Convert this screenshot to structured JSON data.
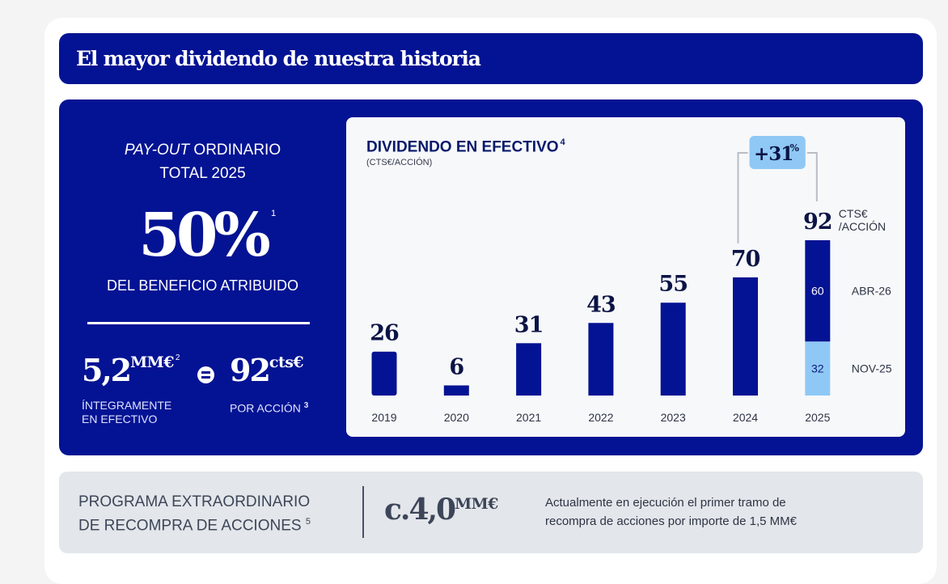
{
  "header": {
    "title": "El mayor dividendo de nuestra historia"
  },
  "payout": {
    "title_italic": "PAY-OUT",
    "title_rest": " ORDINARIO",
    "title_line2": "TOTAL 2025",
    "value": "50%",
    "footnote": "1",
    "caption": "DEL BENEFICIO ATRIBUIDO"
  },
  "totals": {
    "cash_value": "5,2",
    "cash_unit": "MM€",
    "cash_footnote": "2",
    "cash_caption_line1": "ÍNTEGRAMENTE",
    "cash_caption_line2": "EN EFECTIVO",
    "per_share_value": "92",
    "per_share_unit": "cts€",
    "per_share_caption": "POR ACCIÓN",
    "per_share_footnote": "3"
  },
  "chart_data": {
    "type": "bar",
    "title": "DIVIDENDO EN EFECTIVO",
    "title_footnote": "4",
    "subtitle": "(CTS€/ACCIÓN)",
    "xlabel": "",
    "ylabel": "CTS€/ACCIÓN",
    "ylim": [
      0,
      92
    ],
    "grid": false,
    "categories": [
      "2019",
      "2020",
      "2021",
      "2022",
      "2023",
      "2024",
      "2025"
    ],
    "values": [
      26,
      6,
      31,
      43,
      55,
      70,
      92
    ],
    "data_labels": [
      "26",
      "6",
      "31",
      "43",
      "55",
      "70",
      "92"
    ],
    "stacked_2025": [
      {
        "name": "NOV-25",
        "value": 32,
        "label": "32",
        "color": "#8fc8f5"
      },
      {
        "name": "ABR-26",
        "value": 60,
        "label": "60",
        "color": "#041393"
      }
    ],
    "unit_label_line1": "CTS€",
    "unit_label_line2": "/ACCIÓN",
    "growth_annotation": {
      "text": "+31",
      "suffix": "%",
      "from": "2024",
      "to": "2025"
    },
    "bar_color": "#041393",
    "highlight_color": "#8fc8f5"
  },
  "buyback": {
    "label_line1": "PROGRAMA EXTRAORDINARIO",
    "label_line2": "DE RECOMPRA DE ACCIONES",
    "footnote": "5",
    "value": "c.4,0",
    "unit": "MM€",
    "description_line1": "Actualmente en ejecución el primer tramo de",
    "description_line2": "recompra de acciones por importe de 1,5 MM€"
  }
}
